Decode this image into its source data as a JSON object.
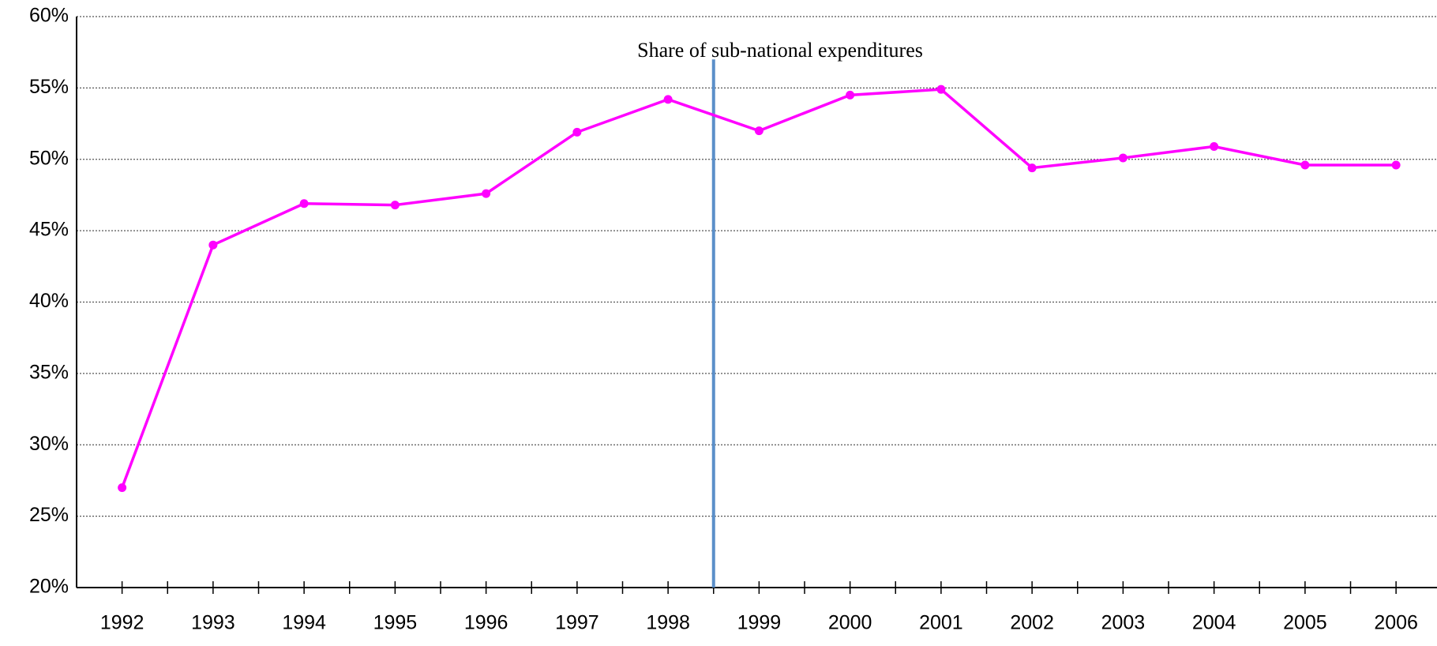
{
  "chart_data": {
    "type": "line",
    "title": "Share of sub-national expenditures",
    "x": [
      1992,
      1993,
      1994,
      1995,
      1996,
      1997,
      1998,
      1999,
      2000,
      2001,
      2002,
      2003,
      2004,
      2005,
      2006
    ],
    "series": [
      {
        "color": "#ff00ff",
        "values": [
          27.0,
          44.0,
          46.9,
          46.8,
          47.6,
          51.9,
          54.2,
          52.0,
          54.5,
          54.9,
          49.4,
          50.1,
          50.9,
          49.6,
          49.6
        ]
      }
    ],
    "xlim": [
      1991.5,
      2006.45
    ],
    "xticks": [
      1992,
      1993,
      1994,
      1995,
      1996,
      1997,
      1998,
      1999,
      2000,
      2001,
      2002,
      2003,
      2004,
      2005,
      2006
    ],
    "ylim": [
      20,
      60
    ],
    "yticks": [
      {
        "value": 20,
        "label": "20%"
      },
      {
        "value": 25,
        "label": "25%"
      },
      {
        "value": 30,
        "label": "30%"
      },
      {
        "value": 35,
        "label": "35%"
      },
      {
        "value": 40,
        "label": "40%"
      },
      {
        "value": 45,
        "label": "45%"
      },
      {
        "value": 50,
        "label": "50%"
      },
      {
        "value": 55,
        "label": "55%"
      },
      {
        "value": 60,
        "label": "60%"
      }
    ],
    "grid": true,
    "vline": {
      "x": 1998.5,
      "color": "#5b8fc9"
    }
  }
}
